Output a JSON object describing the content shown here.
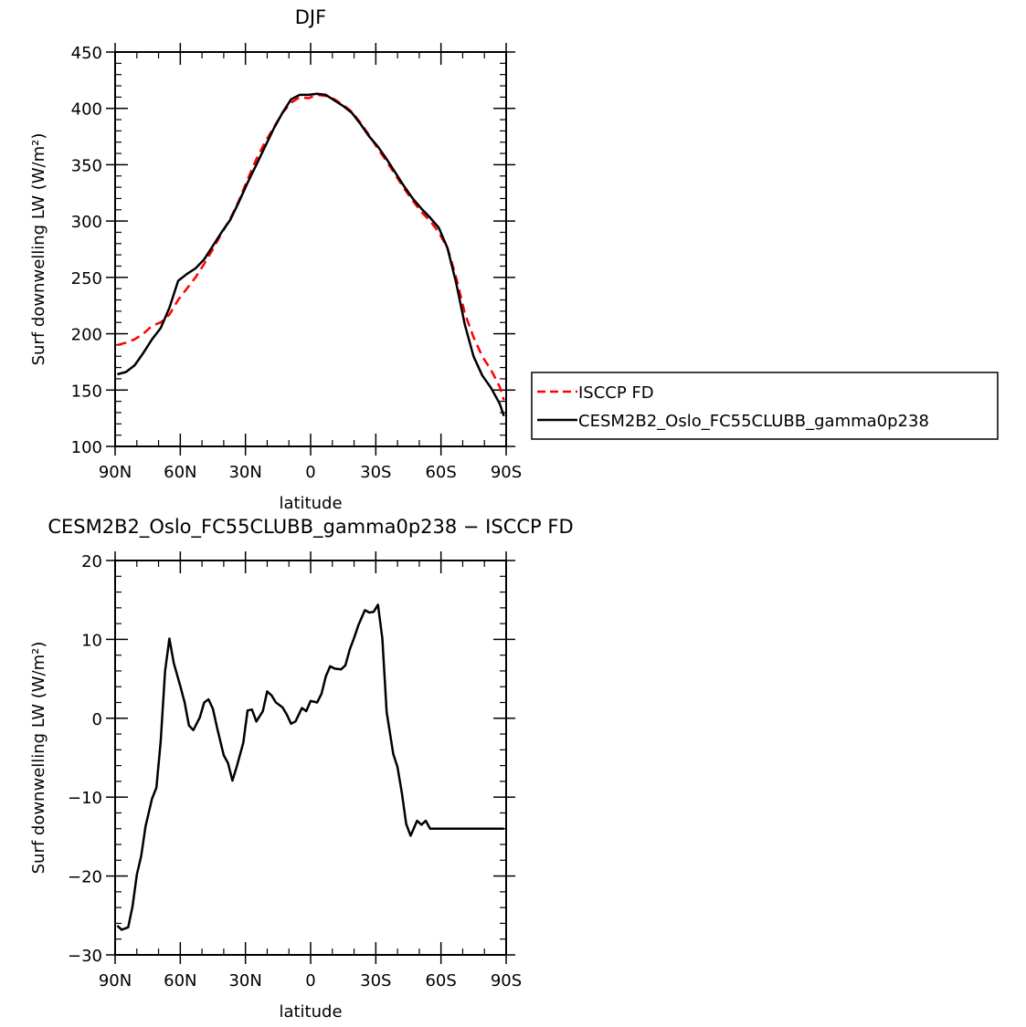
{
  "chart_data": [
    {
      "type": "line",
      "title": "DJF",
      "xlabel": "latitude",
      "ylabel": "Surf downwelling LW (W/m²)",
      "ylim": [
        100,
        450
      ],
      "yticks": [
        100,
        150,
        200,
        250,
        300,
        350,
        400,
        450
      ],
      "xlim": [
        -90,
        90
      ],
      "xtick_values": [
        -90,
        -60,
        -30,
        0,
        30,
        60,
        90
      ],
      "xtick_labels": [
        "90N",
        "60N",
        "30N",
        "0",
        "30S",
        "60S",
        "90S"
      ],
      "legend_position": "right",
      "x": [
        -89,
        -85,
        -81,
        -77,
        -73,
        -69,
        -65,
        -61,
        -57,
        -53,
        -49,
        -45,
        -41,
        -37,
        -33,
        -29,
        -25,
        -21,
        -17,
        -13,
        -9,
        -5,
        -1,
        3,
        7,
        11,
        15,
        19,
        23,
        27,
        31,
        35,
        39,
        43,
        47,
        51,
        55,
        59,
        63,
        67,
        71,
        75,
        79,
        83,
        87,
        89
      ],
      "series": [
        {
          "name": "ISCCP FD",
          "color": "#ff0000",
          "dash": "dashed",
          "values": [
            190,
            192,
            195,
            200,
            207,
            210,
            217,
            230,
            240,
            250,
            262,
            275,
            289,
            302,
            318,
            337,
            355,
            370,
            383,
            396,
            405,
            410,
            409,
            412,
            411,
            408,
            403,
            397,
            387,
            376,
            364,
            353,
            341,
            329,
            318,
            308,
            300,
            290,
            276,
            250,
            218,
            197,
            180,
            168,
            153,
            141
          ]
        },
        {
          "name": "CESM2B2_Oslo_FC55CLUBB_gamma0p238",
          "color": "#000000",
          "dash": "solid",
          "values": [
            164,
            166,
            172,
            183,
            195,
            205,
            223,
            247,
            253,
            258,
            266,
            278,
            290,
            301,
            317,
            334,
            350,
            366,
            382,
            396,
            408,
            412,
            412,
            413,
            412,
            407,
            402,
            396,
            386,
            375,
            366,
            355,
            343,
            331,
            320,
            311,
            303,
            294,
            276,
            245,
            208,
            180,
            163,
            152,
            138,
            127
          ]
        }
      ]
    },
    {
      "type": "line",
      "title": "CESM2B2_Oslo_FC55CLUBB_gamma0p238 − ISCCP FD",
      "xlabel": "latitude",
      "ylabel": "Surf downwelling LW (W/m²)",
      "ylim": [
        -30,
        20
      ],
      "yticks": [
        -30,
        -20,
        -10,
        0,
        10,
        20
      ],
      "xlim": [
        -90,
        90
      ],
      "xtick_values": [
        -90,
        -60,
        -30,
        0,
        30,
        60,
        90
      ],
      "xtick_labels": [
        "90N",
        "60N",
        "30N",
        "0",
        "30S",
        "60S",
        "90S"
      ],
      "x": [
        -89,
        -87,
        -84,
        -82,
        -80,
        -78,
        -76,
        -73,
        -71,
        -69,
        -67,
        -65,
        -63,
        -60,
        -58,
        -56,
        -54,
        -51,
        -49,
        -47,
        -45,
        -43,
        -40,
        -38,
        -36,
        -34,
        -31,
        -29,
        -27,
        -25,
        -22,
        -20,
        -18,
        -16,
        -13,
        -11,
        -9,
        -7,
        -4,
        -2,
        0,
        3,
        5,
        7,
        9,
        11,
        14,
        16,
        18,
        20,
        22,
        25,
        27,
        29,
        31,
        33,
        35,
        38,
        40,
        42,
        44,
        46,
        49,
        51,
        53,
        55,
        58,
        60,
        62,
        64,
        66,
        69,
        71,
        73,
        75,
        77,
        80,
        82,
        84,
        86,
        88,
        89
      ],
      "series": [
        {
          "name": "",
          "color": "#000000",
          "values": [
            -26.3,
            -26.8,
            -26.5,
            -23.9,
            -19.8,
            -17.5,
            -13.7,
            -10.2,
            -8.8,
            -2.9,
            6.0,
            10.1,
            7.0,
            4.1,
            2.0,
            -0.9,
            -1.5,
            0.1,
            2.0,
            2.4,
            1.2,
            -1.3,
            -4.7,
            -5.7,
            -7.9,
            -6.1,
            -3.1,
            1.0,
            1.1,
            -0.4,
            0.9,
            3.4,
            2.9,
            2.0,
            1.4,
            0.5,
            -0.7,
            -0.4,
            1.3,
            0.9,
            2.2,
            2.0,
            3.1,
            5.3,
            6.6,
            6.3,
            6.2,
            6.7,
            8.7,
            10.2,
            11.8,
            13.7,
            13.4,
            13.5,
            14.4,
            10.1,
            0.8,
            -4.5,
            -6.2,
            -9.5,
            -13.4,
            -14.9,
            -13.0,
            -13.5,
            -13.0,
            -14.0,
            -14.0,
            -14.0,
            -14.0,
            -14.0,
            -14.0,
            -14.0,
            -14.0,
            -14.0,
            -14.0,
            -14.0,
            -14.0,
            -14.0,
            -14.0,
            -14.0,
            -14.0,
            -14.0
          ]
        }
      ]
    }
  ]
}
